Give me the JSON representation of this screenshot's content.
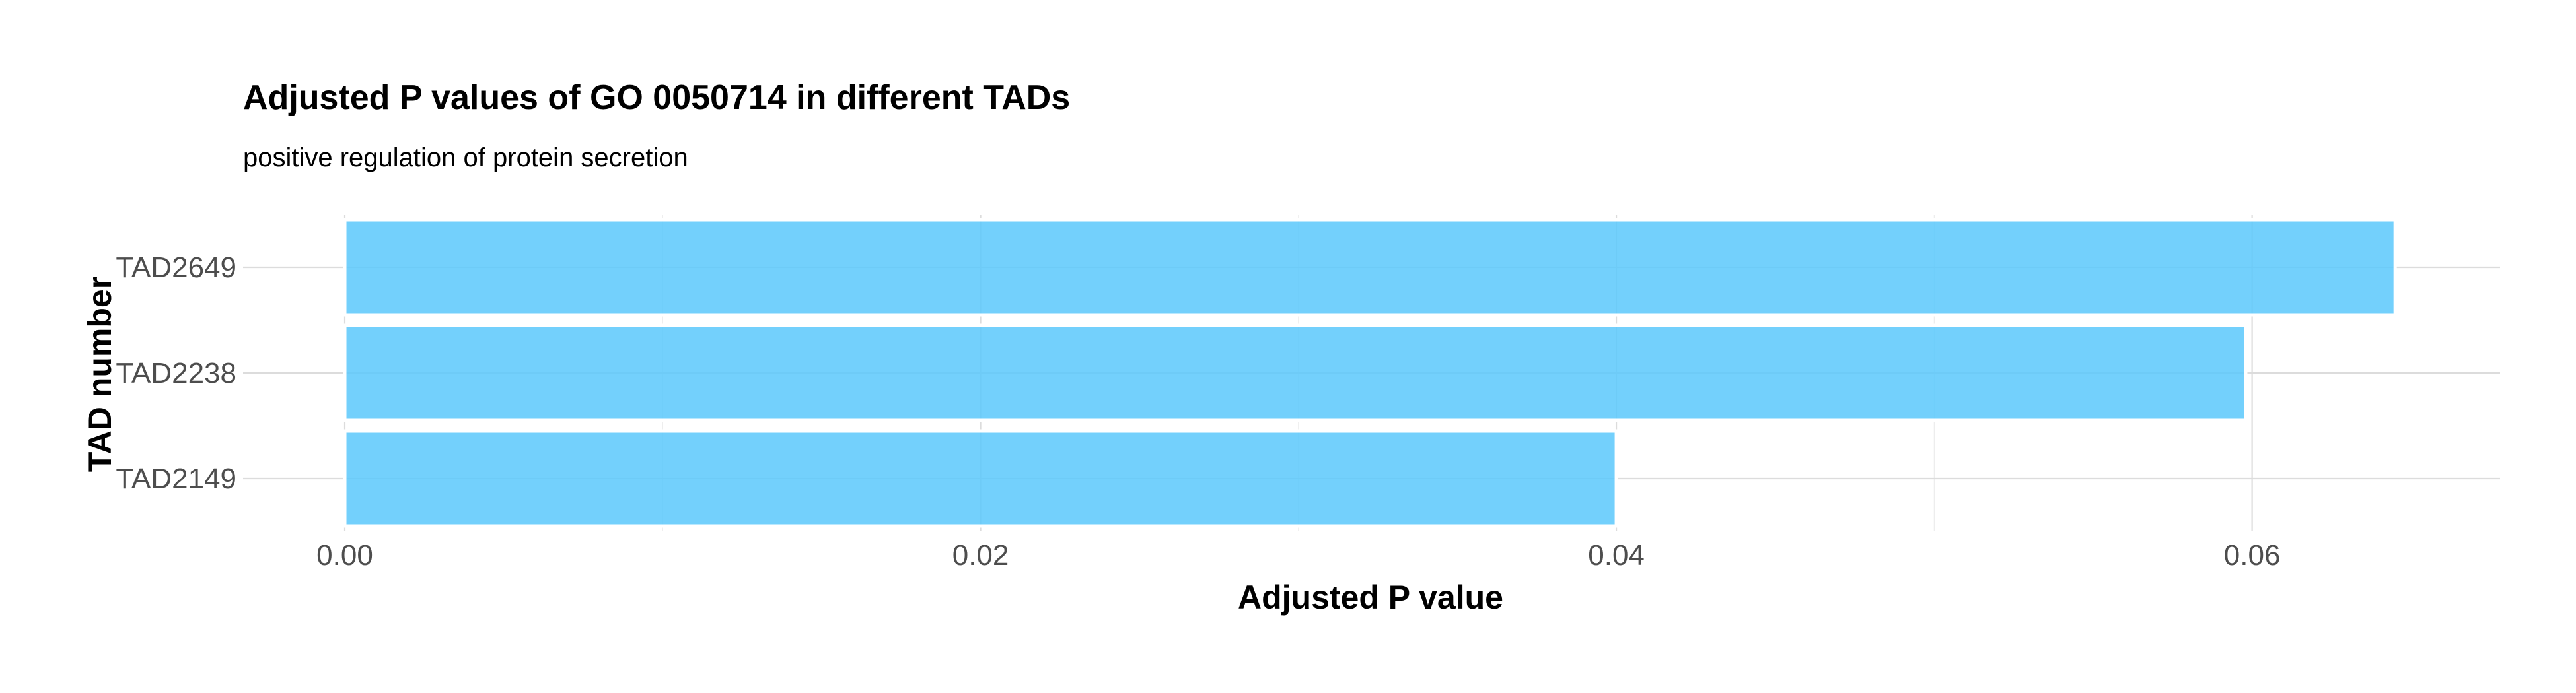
{
  "chart_data": {
    "type": "bar",
    "orientation": "horizontal",
    "title": "Adjusted P values of GO 0050714 in different TADs",
    "subtitle": "positive regulation of protein secretion",
    "xlabel": "Adjusted P value",
    "ylabel": "TAD number",
    "categories": [
      "TAD2649",
      "TAD2238",
      "TAD2149"
    ],
    "values": [
      0.0645,
      0.0598,
      0.04
    ],
    "xlim": [
      -0.0032,
      0.0678
    ],
    "xticks": [
      0.0,
      0.02,
      0.04,
      0.06
    ],
    "xtick_labels": [
      "0.00",
      "0.02",
      "0.04",
      "0.06"
    ],
    "xminor": [
      0.01,
      0.03,
      0.05
    ],
    "grid": true,
    "legend": "none",
    "bar_color": "#5bc8fb",
    "bar_opacity": 0.85,
    "grid_color": "#dcdcdc"
  }
}
